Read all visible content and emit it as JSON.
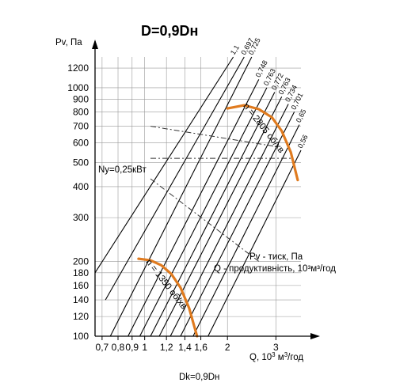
{
  "chart_data": {
    "type": "line",
    "title": "D=0,9Dн",
    "footer": "Dk=0,9Dн",
    "ylabel": "Pv, Па",
    "xlabel_parts": [
      "Q, 10",
      "3",
      " м",
      "3",
      "/год"
    ],
    "x_scale": "log",
    "y_scale": "log",
    "xlim": [
      0.66,
      3.7
    ],
    "ylim": [
      100,
      1330
    ],
    "x_ticks": [
      {
        "value": 0.7,
        "label": "0,7"
      },
      {
        "value": 0.8,
        "label": "0,8"
      },
      {
        "value": 0.9,
        "label": "0,9"
      },
      {
        "value": 1.0,
        "label": "1"
      },
      {
        "value": 1.2,
        "label": "1,2"
      },
      {
        "value": 1.4,
        "label": "1,4"
      },
      {
        "value": 1.6,
        "label": "1,6"
      },
      {
        "value": 2.0,
        "label": "2"
      },
      {
        "value": 3.0,
        "label": "3"
      }
    ],
    "y_ticks": [
      {
        "value": 100,
        "label": "100"
      },
      {
        "value": 120,
        "label": "120"
      },
      {
        "value": 140,
        "label": "140"
      },
      {
        "value": 160,
        "label": "160"
      },
      {
        "value": 180,
        "label": "180"
      },
      {
        "value": 200,
        "label": "200"
      },
      {
        "value": 300,
        "label": "300"
      },
      {
        "value": 400,
        "label": "400"
      },
      {
        "value": 500,
        "label": "500"
      },
      {
        "value": 600,
        "label": "600"
      },
      {
        "value": 700,
        "label": "700"
      },
      {
        "value": 800,
        "label": "800"
      },
      {
        "value": 900,
        "label": "900"
      },
      {
        "value": 1000,
        "label": "1000"
      },
      {
        "value": 1200,
        "label": "1200"
      }
    ],
    "grid": true,
    "system_lines": [
      {
        "label": "1,1",
        "x": [
          0.66,
          2.1
        ],
        "y": [
          180,
          1330
        ]
      },
      {
        "label": "0,697",
        "x": [
          0.72,
          2.3
        ],
        "y": [
          140,
          1330
        ]
      },
      {
        "label": "0,725",
        "x": [
          0.75,
          2.45
        ],
        "y": [
          100,
          1330
        ]
      },
      {
        "label": "0,748",
        "x": [
          0.87,
          2.6
        ],
        "y": [
          100,
          1080
        ]
      },
      {
        "label": "0,763",
        "x": [
          0.96,
          2.78
        ],
        "y": [
          100,
          1000
        ]
      },
      {
        "label": "0,772",
        "x": [
          1.05,
          2.97
        ],
        "y": [
          100,
          960
        ]
      },
      {
        "label": "0,763",
        "x": [
          1.13,
          3.15
        ],
        "y": [
          100,
          920
        ]
      },
      {
        "label": "0,734",
        "x": [
          1.24,
          3.33
        ],
        "y": [
          100,
          860
        ]
      },
      {
        "label": "0,701",
        "x": [
          1.35,
          3.5
        ],
        "y": [
          100,
          800
        ]
      },
      {
        "label": "0,65",
        "x": [
          1.5,
          3.65
        ],
        "y": [
          100,
          710
        ]
      },
      {
        "label": "0,56",
        "x": [
          1.7,
          3.7
        ],
        "y": [
          100,
          560
        ]
      }
    ],
    "series": [
      {
        "name": "n = 2805 об/хв",
        "color": "#e07b1f",
        "x": [
          2.0,
          2.3,
          2.6,
          2.9,
          3.15,
          3.4,
          3.6
        ],
        "y": [
          825,
          850,
          820,
          760,
          670,
          550,
          425
        ]
      },
      {
        "name": "n = 1350 об/хв",
        "color": "#e07b1f",
        "x": [
          0.95,
          1.05,
          1.15,
          1.25,
          1.35,
          1.45,
          1.55
        ],
        "y": [
          205,
          202,
          193,
          178,
          157,
          130,
          100
        ]
      }
    ],
    "dashed_lines": [
      {
        "x": [
          1.05,
          3.45
        ],
        "y": [
          520,
          520
        ]
      },
      {
        "x": [
          1.05,
          2.6
        ],
        "y": [
          430,
          200
        ]
      },
      {
        "x": [
          1.05,
          3.0
        ],
        "y": [
          700,
          580
        ]
      }
    ],
    "annotations": [
      {
        "text": "Nу=0,25кВт",
        "x": 0.9,
        "y": 450
      },
      {
        "text": "Pv - тиск, Па",
        "x": 2.55,
        "y": 205
      },
      {
        "text": "Q - продуктивність, 10³м³/год",
        "x": 2.3,
        "y": 185
      }
    ]
  }
}
